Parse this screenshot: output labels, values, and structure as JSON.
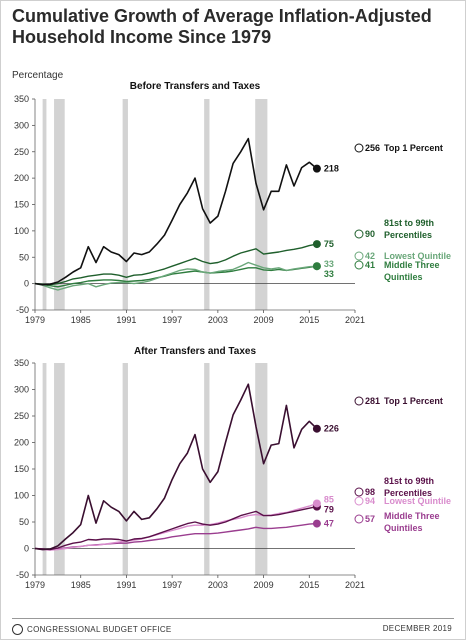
{
  "title": "Cumulative Growth of Average Inflation-Adjusted Household Income Since 1979",
  "ylabel": "Percentage",
  "colors": {
    "top1_a": "#111111",
    "p81_99_a": "#1f5f2c",
    "lowest_a": "#6aa77a",
    "middle_a": "#2f7d3f",
    "top1_b": "#3a0f30",
    "p81_99_b": "#5a1049",
    "lowest_b": "#d98ccd",
    "middle_b": "#9a3d8f",
    "recession": "#d3d3d3"
  },
  "footer": {
    "agency": "CONGRESSIONAL BUDGET OFFICE",
    "date": "DECEMBER 2019"
  },
  "chart_data": [
    {
      "type": "line",
      "title": "Before Transfers and Taxes",
      "ylabel": "Percentage",
      "ylim": [
        -50,
        350
      ],
      "yticks": [
        "350",
        "300",
        "250",
        "200",
        "150",
        "100",
        "50",
        "0",
        "-50"
      ],
      "xlim": [
        1979,
        2021
      ],
      "xticks": [
        "1979",
        "1985",
        "1991",
        "1997",
        "2003",
        "2009",
        "2015",
        "2021"
      ],
      "recessions": [
        [
          1980,
          1980.5
        ],
        [
          1981.5,
          1982.9
        ],
        [
          1990.5,
          1991.2
        ],
        [
          2001.2,
          2001.9
        ],
        [
          2007.9,
          2009.5
        ]
      ],
      "x": [
        1979,
        1980,
        1981,
        1982,
        1983,
        1984,
        1985,
        1986,
        1987,
        1988,
        1989,
        1990,
        1991,
        1992,
        1993,
        1994,
        1995,
        1996,
        1997,
        1998,
        1999,
        2000,
        2001,
        2002,
        2003,
        2004,
        2005,
        2006,
        2007,
        2008,
        2009,
        2010,
        2011,
        2012,
        2013,
        2014,
        2015,
        2016
      ],
      "series": [
        {
          "name": "Top 1 Percent",
          "color": "#111111",
          "end_label": "218",
          "hollow_value": 256,
          "hollow_label": "256",
          "values": [
            0,
            -2,
            -1,
            3,
            12,
            22,
            30,
            70,
            40,
            70,
            60,
            55,
            42,
            58,
            55,
            60,
            75,
            92,
            120,
            150,
            172,
            200,
            142,
            115,
            128,
            175,
            228,
            250,
            275,
            190,
            140,
            175,
            175,
            225,
            185,
            220,
            230,
            218
          ]
        },
        {
          "name": "81st to 99th Percentiles",
          "color": "#1f5f2c",
          "end_label": "75",
          "hollow_value": 90,
          "hollow_label": "90",
          "values": [
            0,
            -1,
            -2,
            0,
            4,
            9,
            11,
            14,
            16,
            18,
            18,
            16,
            12,
            16,
            17,
            20,
            24,
            28,
            33,
            38,
            43,
            48,
            42,
            38,
            40,
            45,
            52,
            58,
            62,
            66,
            56,
            58,
            60,
            63,
            65,
            68,
            72,
            75
          ]
        },
        {
          "name": "Lowest Quintile",
          "color": "#6aa77a",
          "end_label": "33",
          "hollow_value": 42,
          "hollow_label": "42",
          "values": [
            0,
            -3,
            -8,
            -12,
            -8,
            -4,
            -2,
            0,
            -6,
            -2,
            1,
            2,
            2,
            0,
            2,
            5,
            10,
            15,
            20,
            25,
            28,
            27,
            22,
            20,
            23,
            25,
            27,
            33,
            40,
            35,
            30,
            28,
            30,
            25,
            28,
            30,
            32,
            33
          ]
        },
        {
          "name": "Middle Three Quintiles",
          "color": "#2f7d3f",
          "end_label": "33",
          "hollow_value": 41,
          "hollow_label": "41",
          "values": [
            0,
            -2,
            -4,
            -6,
            -3,
            0,
            2,
            5,
            6,
            7,
            7,
            6,
            4,
            5,
            6,
            8,
            11,
            14,
            18,
            20,
            22,
            24,
            22,
            20,
            21,
            22,
            24,
            27,
            30,
            30,
            26,
            25,
            27,
            25,
            27,
            29,
            31,
            33
          ]
        }
      ],
      "legend": {
        "top1": "Top 1 Percent",
        "p81_line1": "81st to 99th",
        "p81_line2": "Percentiles",
        "lowest": "Lowest Quintile",
        "middle_line1": "Middle Three",
        "middle_line2": "Quintiles"
      }
    },
    {
      "type": "line",
      "title": "After Transfers and Taxes",
      "ylim": [
        -50,
        350
      ],
      "yticks": [
        "350",
        "300",
        "250",
        "200",
        "150",
        "100",
        "50",
        "0",
        "-50"
      ],
      "xlim": [
        1979,
        2021
      ],
      "xticks": [
        "1979",
        "1985",
        "1991",
        "1997",
        "2003",
        "2009",
        "2015",
        "2021"
      ],
      "recessions": [
        [
          1980,
          1980.5
        ],
        [
          1981.5,
          1982.9
        ],
        [
          1990.5,
          1991.2
        ],
        [
          2001.2,
          2001.9
        ],
        [
          2007.9,
          2009.5
        ]
      ],
      "x": [
        1979,
        1980,
        1981,
        1982,
        1983,
        1984,
        1985,
        1986,
        1987,
        1988,
        1989,
        1990,
        1991,
        1992,
        1993,
        1994,
        1995,
        1996,
        1997,
        1998,
        1999,
        2000,
        2001,
        2002,
        2003,
        2004,
        2005,
        2006,
        2007,
        2008,
        2009,
        2010,
        2011,
        2012,
        2013,
        2014,
        2015,
        2016
      ],
      "series": [
        {
          "name": "Top 1 Percent",
          "color": "#3a0f30",
          "end_label": "226",
          "hollow_value": 281,
          "hollow_label": "281",
          "values": [
            0,
            -2,
            -1,
            5,
            18,
            30,
            45,
            100,
            48,
            90,
            78,
            70,
            52,
            70,
            55,
            58,
            75,
            95,
            130,
            160,
            180,
            215,
            150,
            125,
            145,
            200,
            252,
            280,
            310,
            230,
            160,
            195,
            198,
            270,
            190,
            225,
            240,
            226
          ]
        },
        {
          "name": "81st to 99th Percentiles",
          "color": "#5a1049",
          "end_label": "79",
          "hollow_value": 98,
          "hollow_label": "98",
          "values": [
            0,
            -1,
            -2,
            1,
            6,
            10,
            12,
            17,
            16,
            18,
            18,
            17,
            14,
            18,
            19,
            22,
            27,
            32,
            37,
            42,
            47,
            50,
            46,
            44,
            46,
            50,
            56,
            62,
            66,
            70,
            62,
            62,
            64,
            67,
            70,
            73,
            76,
            79
          ]
        },
        {
          "name": "Lowest Quintile",
          "color": "#d98ccd",
          "end_label": "85",
          "hollow_value": 94,
          "hollow_label": "94",
          "values": [
            0,
            -2,
            -3,
            -2,
            0,
            2,
            4,
            6,
            6,
            8,
            10,
            12,
            14,
            16,
            18,
            22,
            26,
            30,
            34,
            38,
            42,
            44,
            44,
            45,
            48,
            52,
            55,
            58,
            62,
            64,
            62,
            63,
            66,
            68,
            72,
            76,
            80,
            85
          ]
        },
        {
          "name": "Middle Three Quintiles",
          "color": "#9a3d8f",
          "end_label": "47",
          "hollow_value": 57,
          "hollow_label": "57",
          "values": [
            0,
            -1,
            -2,
            -1,
            1,
            3,
            4,
            6,
            7,
            8,
            9,
            10,
            10,
            12,
            13,
            15,
            17,
            19,
            22,
            24,
            26,
            28,
            28,
            28,
            29,
            31,
            33,
            35,
            37,
            40,
            38,
            38,
            39,
            40,
            42,
            44,
            46,
            47
          ]
        }
      ],
      "legend": {
        "top1": "Top 1 Percent",
        "p81_line1": "81st to 99th",
        "p81_line2": "Percentiles",
        "lowest": "Lowest Quintile",
        "middle_line1": "Middle Three",
        "middle_line2": "Quintiles"
      }
    }
  ]
}
